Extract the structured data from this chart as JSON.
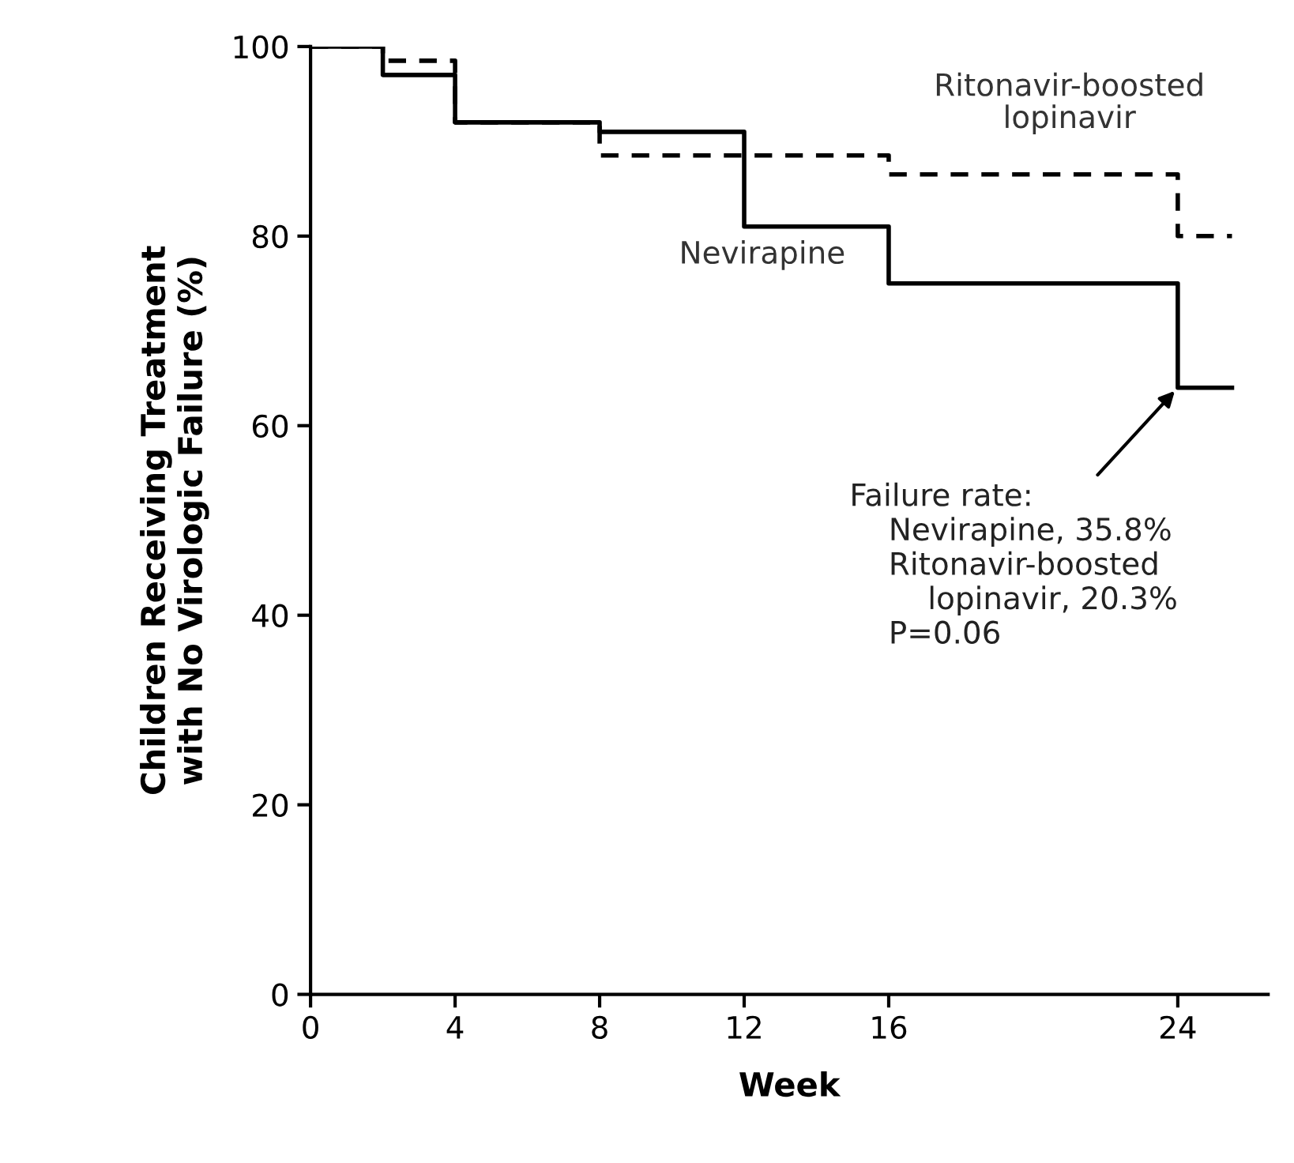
{
  "chart_data": {
    "type": "step",
    "xlabel": "Week",
    "ylabel": "Children Receiving Treatment\nwith No Virologic Failure (%)",
    "xlim": [
      0,
      26.5
    ],
    "ylim": [
      0,
      100
    ],
    "xticks": [
      0,
      4,
      8,
      12,
      16,
      24
    ],
    "yticks": [
      0,
      20,
      40,
      60,
      80,
      100
    ],
    "grid": false,
    "legend": false,
    "series": [
      {
        "name": "Nevirapine",
        "color": "#000000",
        "line_style": "solid",
        "x": [
          0,
          2,
          4,
          8,
          12,
          16,
          24,
          25.5
        ],
        "values": [
          100,
          97,
          92,
          91,
          81,
          75,
          64,
          64
        ]
      },
      {
        "name": "Ritonavir-boosted\nlopinavir",
        "color": "#000000",
        "line_style": "dashed",
        "x": [
          0,
          2,
          4,
          8,
          16,
          24,
          25.5
        ],
        "values": [
          100,
          98.5,
          92,
          88.5,
          86.5,
          80,
          80
        ]
      }
    ],
    "annotations": [
      {
        "text": "Failure rate:\n    Nevirapine, 35.8%\n    Ritonavir-boosted\n        lopinavir, 20.3%\n    P=0.06",
        "x": 24,
        "y": 64
      }
    ]
  }
}
